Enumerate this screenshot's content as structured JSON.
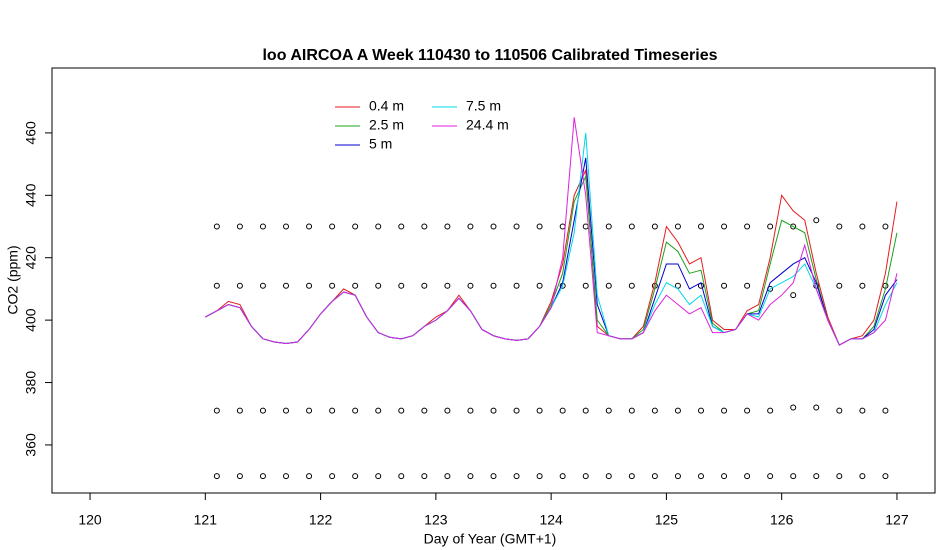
{
  "chart_data": {
    "type": "line",
    "title": "loo AIRCOA A  Week 110430 to 110506  Calibrated Timeseries",
    "xlabel": "Day of Year (GMT+1)",
    "ylabel": "CO2 (ppm)",
    "xlim": [
      119.67,
      127.33
    ],
    "ylim": [
      344.6,
      480.8
    ],
    "xticks": [
      120,
      121,
      122,
      123,
      124,
      125,
      126,
      127
    ],
    "yticks": [
      360,
      380,
      400,
      420,
      440,
      460
    ],
    "legend": "top-left",
    "x": [
      121.0,
      121.1,
      121.2,
      121.3,
      121.4,
      121.5,
      121.6,
      121.7,
      121.8,
      121.9,
      122.0,
      122.1,
      122.2,
      122.3,
      122.4,
      122.5,
      122.6,
      122.7,
      122.8,
      122.9,
      123.0,
      123.1,
      123.2,
      123.3,
      123.4,
      123.5,
      123.6,
      123.7,
      123.8,
      123.9,
      124.0,
      124.1,
      124.2,
      124.3,
      124.4,
      124.5,
      124.6,
      124.7,
      124.8,
      124.9,
      125.0,
      125.1,
      125.2,
      125.3,
      125.4,
      125.5,
      125.6,
      125.7,
      125.8,
      125.9,
      126.0,
      126.1,
      126.2,
      126.3,
      126.4,
      126.5,
      126.6,
      126.7,
      126.8,
      126.9,
      127.0
    ],
    "series": [
      {
        "name": "0.4 m",
        "color": "#e41a1c",
        "values": [
          401,
          403,
          406,
          405,
          398,
          394,
          393,
          392.5,
          393,
          397,
          402,
          406,
          410,
          408,
          401,
          396,
          394.5,
          394,
          395,
          398,
          401,
          403,
          408,
          403,
          397,
          395,
          394,
          393.5,
          394,
          398,
          406,
          418,
          440,
          448,
          398,
          395,
          394,
          394,
          398,
          412,
          430,
          425,
          418,
          420,
          400,
          397,
          397,
          403,
          405,
          420,
          440,
          435,
          432,
          415,
          401,
          392,
          394,
          395,
          400,
          415,
          438
        ]
      },
      {
        "name": "2.5 m",
        "color": "#1ca01c",
        "values": [
          401,
          403,
          405,
          404,
          398,
          394,
          393,
          392.5,
          393,
          397,
          402,
          406,
          409,
          408,
          401,
          396,
          394.5,
          394,
          395,
          398,
          400,
          403,
          407,
          403,
          397,
          395,
          394,
          393.5,
          394,
          398,
          405,
          415,
          438,
          446,
          400,
          395,
          394,
          394,
          397,
          410,
          425,
          422,
          415,
          416,
          399,
          396,
          397,
          402,
          403,
          418,
          432,
          430,
          428,
          413,
          400,
          392,
          394,
          394,
          398,
          410,
          428
        ]
      },
      {
        "name": "5 m",
        "color": "#0000cc",
        "values": [
          401,
          403,
          405,
          404,
          398,
          394,
          393,
          392.5,
          393,
          397,
          402,
          406,
          409,
          408,
          401,
          396,
          394.5,
          394,
          395,
          398,
          400,
          403,
          407,
          403,
          397,
          395,
          394,
          393.5,
          394,
          398,
          404,
          412,
          432,
          452,
          405,
          395,
          394,
          394,
          396,
          407,
          418,
          418,
          410,
          412,
          398,
          396,
          397,
          402,
          402,
          412,
          415,
          418,
          420,
          412,
          400,
          392,
          394,
          394,
          397,
          408,
          413
        ]
      },
      {
        "name": "7.5 m",
        "color": "#00d8e8",
        "values": [
          401,
          403,
          405,
          404,
          398,
          394,
          393,
          392.5,
          393,
          397,
          402,
          406,
          409,
          408,
          401,
          396,
          394.5,
          394,
          395,
          398,
          400,
          403,
          407,
          403,
          397,
          395,
          394,
          393.5,
          394,
          398,
          404,
          411,
          428,
          460,
          408,
          395,
          394,
          394,
          396,
          405,
          412,
          410,
          405,
          408,
          398,
          396,
          397,
          402,
          401,
          410,
          412,
          414,
          418,
          410,
          400,
          392,
          394,
          394,
          396,
          405,
          412
        ]
      },
      {
        "name": "24.4 m",
        "color": "#dd22dd",
        "values": [
          401,
          403,
          405,
          404,
          398,
          394,
          393,
          392.5,
          393,
          397,
          402,
          406,
          409,
          408,
          401,
          396,
          394.5,
          394,
          395,
          398,
          400,
          403,
          407,
          403,
          397,
          395,
          394,
          393.5,
          394,
          398,
          404,
          420,
          465,
          440,
          396,
          395,
          394,
          394,
          396,
          403,
          408,
          405,
          402,
          404,
          396,
          396,
          397,
          402,
          400,
          405,
          408,
          412,
          424,
          410,
          400,
          392,
          394,
          394,
          396,
          400,
          415
        ]
      }
    ],
    "points": {
      "x": [
        121.1,
        121.3,
        121.5,
        121.7,
        121.9,
        122.1,
        122.3,
        122.5,
        122.7,
        122.9,
        123.1,
        123.3,
        123.5,
        123.7,
        123.9,
        124.1,
        124.3,
        124.5,
        124.7,
        124.9,
        125.1,
        125.3,
        125.5,
        125.7,
        125.9,
        126.1,
        126.3,
        126.5,
        126.7,
        126.9
      ],
      "rows": [
        [
          430,
          430,
          430,
          430,
          430,
          430,
          430,
          430,
          430,
          430,
          430,
          430,
          430,
          430,
          430,
          430,
          430,
          430,
          430,
          430,
          430,
          430,
          430,
          430,
          430,
          430,
          432,
          430,
          430,
          430
        ],
        [
          411,
          411,
          411,
          411,
          411,
          411,
          411,
          411,
          411,
          411,
          411,
          411,
          411,
          411,
          411,
          411,
          411,
          411,
          411,
          411,
          411,
          411,
          411,
          411,
          410,
          408,
          411,
          411,
          411,
          411
        ],
        [
          371,
          371,
          371,
          371,
          371,
          371,
          371,
          371,
          371,
          371,
          371,
          371,
          371,
          371,
          371,
          371,
          371,
          371,
          371,
          371,
          371,
          371,
          371,
          371,
          371,
          372,
          372,
          371,
          371,
          371
        ],
        [
          350,
          350,
          350,
          350,
          350,
          350,
          350,
          350,
          350,
          350,
          350,
          350,
          350,
          350,
          350,
          350,
          350,
          350,
          350,
          350,
          350,
          350,
          350,
          350,
          350,
          350,
          350,
          350,
          350,
          350
        ]
      ]
    }
  }
}
